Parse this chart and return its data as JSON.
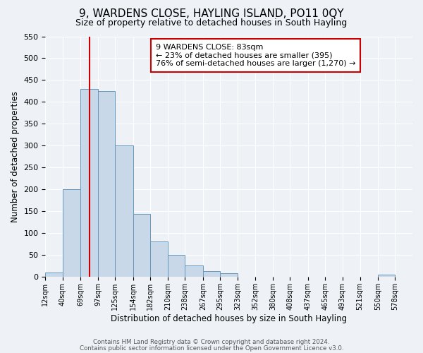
{
  "title": "9, WARDENS CLOSE, HAYLING ISLAND, PO11 0QY",
  "subtitle": "Size of property relative to detached houses in South Hayling",
  "xlabel": "Distribution of detached houses by size in South Hayling",
  "ylabel": "Number of detached properties",
  "bar_values": [
    10,
    200,
    430,
    425,
    300,
    143,
    80,
    50,
    25,
    13,
    8,
    0,
    0,
    0,
    0,
    0,
    0,
    0,
    0,
    5
  ],
  "bin_labels": [
    "12sqm",
    "40sqm",
    "69sqm",
    "97sqm",
    "125sqm",
    "154sqm",
    "182sqm",
    "210sqm",
    "238sqm",
    "267sqm",
    "295sqm",
    "323sqm",
    "352sqm",
    "380sqm",
    "408sqm",
    "437sqm",
    "465sqm",
    "493sqm",
    "521sqm",
    "550sqm",
    "578sqm"
  ],
  "bin_edges": [
    12,
    40,
    69,
    97,
    125,
    154,
    182,
    210,
    238,
    267,
    295,
    323,
    352,
    380,
    408,
    437,
    465,
    493,
    521,
    550,
    578
  ],
  "property_line_x": 83,
  "ylim": [
    0,
    550
  ],
  "yticks": [
    0,
    50,
    100,
    150,
    200,
    250,
    300,
    350,
    400,
    450,
    500,
    550
  ],
  "bar_color": "#c8d8e8",
  "bar_edge_color": "#6699bb",
  "vline_color": "#cc0000",
  "annotation_text": "9 WARDENS CLOSE: 83sqm\n← 23% of detached houses are smaller (395)\n76% of semi-detached houses are larger (1,270) →",
  "annotation_box_color": "#ffffff",
  "annotation_box_edge_color": "#cc0000",
  "footer_line1": "Contains HM Land Registry data © Crown copyright and database right 2024.",
  "footer_line2": "Contains public sector information licensed under the Open Government Licence v3.0.",
  "background_color": "#eef2f6",
  "plot_background_color": "#eef2f6",
  "title_fontsize": 11,
  "subtitle_fontsize": 9
}
